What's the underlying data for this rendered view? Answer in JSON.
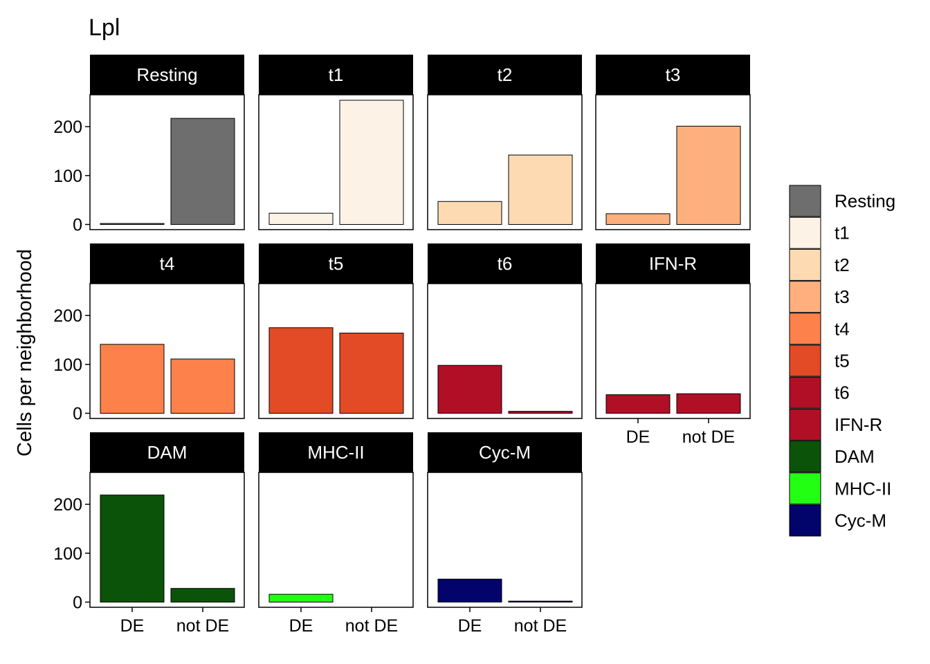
{
  "chart_data": {
    "type": "bar",
    "title": "Lpl",
    "xlabel": "",
    "ylabel": "Cells per neighborhood",
    "categories": [
      "DE",
      "not DE"
    ],
    "ylim": [
      0,
      290
    ],
    "yticks": [
      0,
      100,
      200
    ],
    "facets": [
      {
        "label": "Resting",
        "color": "#6E6E6E",
        "values": [
          2,
          217
        ]
      },
      {
        "label": "t1",
        "color": "#FDF2E6",
        "values": [
          23,
          254
        ]
      },
      {
        "label": "t2",
        "color": "#FDDAB1",
        "values": [
          47,
          142
        ]
      },
      {
        "label": "t3",
        "color": "#FDB07D",
        "values": [
          22,
          201
        ]
      },
      {
        "label": "t4",
        "color": "#FC814B",
        "values": [
          141,
          111
        ]
      },
      {
        "label": "t5",
        "color": "#E34A26",
        "values": [
          175,
          164
        ]
      },
      {
        "label": "t6",
        "color": "#B00F25",
        "values": [
          98,
          4
        ]
      },
      {
        "label": "IFN-R",
        "color": "#B00F25",
        "values": [
          38,
          40
        ]
      },
      {
        "label": "DAM",
        "color": "#0B5309",
        "values": [
          219,
          28
        ]
      },
      {
        "label": "MHC-II",
        "color": "#23FF12",
        "values": [
          16,
          0
        ]
      },
      {
        "label": "Cyc-M",
        "color": "#02046B",
        "values": [
          47,
          2
        ]
      }
    ],
    "legend": {
      "position": "right",
      "entries": [
        {
          "label": "Resting",
          "color": "#6E6E6E"
        },
        {
          "label": "t1",
          "color": "#FDF2E6"
        },
        {
          "label": "t2",
          "color": "#FDDAB1"
        },
        {
          "label": "t3",
          "color": "#FDB07D"
        },
        {
          "label": "t4",
          "color": "#FC814B"
        },
        {
          "label": "t5",
          "color": "#E34A26"
        },
        {
          "label": "t6",
          "color": "#B00F25"
        },
        {
          "label": "IFN-R",
          "color": "#B00F25"
        },
        {
          "label": "DAM",
          "color": "#0B5309"
        },
        {
          "label": "MHC-II",
          "color": "#23FF12"
        },
        {
          "label": "Cyc-M",
          "color": "#02046B"
        }
      ]
    }
  }
}
